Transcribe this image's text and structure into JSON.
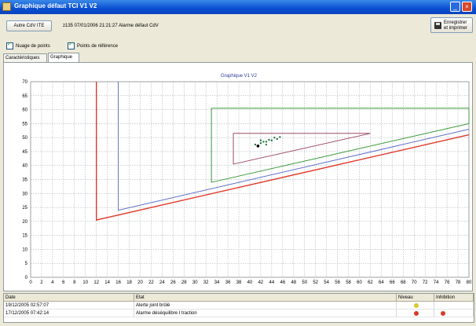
{
  "window": {
    "title": "Graphique défaut TCI V1 V2"
  },
  "toolbar": {
    "autre_cdv_label": "Autre CdV ITE",
    "alarm_text": "z135 07/01/2006 21:21:27 Alarme défaut CdV",
    "save_label_line1": "Enregistrer",
    "save_label_line2": "et imprimer"
  },
  "options": [
    {
      "label": "Nuage de points",
      "checked": true
    },
    {
      "label": "Points de référence",
      "checked": true
    }
  ],
  "tabs": [
    {
      "label": "Caractéristiques",
      "active": false
    },
    {
      "label": "Graphique",
      "active": true
    }
  ],
  "chart_data": {
    "type": "line",
    "title": "Graphique V1 V2",
    "xlim": [
      0,
      80
    ],
    "ylim": [
      0,
      70
    ],
    "xticks": [
      0,
      2,
      4,
      6,
      8,
      10,
      12,
      14,
      16,
      18,
      20,
      22,
      24,
      26,
      28,
      30,
      32,
      34,
      36,
      38,
      40,
      42,
      44,
      46,
      48,
      50,
      52,
      54,
      56,
      58,
      60,
      62,
      64,
      66,
      68,
      70,
      72,
      74,
      76,
      78,
      80
    ],
    "yticks": [
      0,
      5,
      10,
      15,
      20,
      25,
      30,
      35,
      40,
      45,
      50,
      55,
      60,
      65,
      70
    ],
    "grid": true,
    "series": [
      {
        "color": "#e03a2a",
        "points": [
          [
            12,
            70
          ],
          [
            12,
            20.5
          ],
          [
            80,
            51
          ]
        ]
      },
      {
        "color": "#6070c8",
        "points": [
          [
            16,
            70
          ],
          [
            16,
            24
          ],
          [
            80,
            53
          ]
        ]
      },
      {
        "color": "#3a9a3a",
        "points": [
          [
            33,
            60.5
          ],
          [
            80,
            60.5
          ],
          [
            80,
            55
          ],
          [
            33,
            34
          ],
          [
            33,
            60.5
          ]
        ]
      },
      {
        "color": "#a04a6a",
        "points": [
          [
            37,
            51.5
          ],
          [
            62,
            51.5
          ],
          [
            37,
            40.5
          ],
          [
            37,
            51.5
          ]
        ]
      }
    ],
    "marks": {
      "cluster_color": "#1a7a3a",
      "cluster": [
        [
          41,
          47.5
        ],
        [
          42,
          48
        ],
        [
          43,
          48.5
        ],
        [
          44,
          49
        ],
        [
          45,
          49.5
        ],
        [
          41.5,
          47
        ],
        [
          42.5,
          48.5
        ],
        [
          43.5,
          49.2
        ],
        [
          44.5,
          50
        ],
        [
          45.5,
          50.2
        ],
        [
          42,
          49
        ],
        [
          43,
          47.5
        ]
      ],
      "reference_point": [
        41.5,
        47
      ],
      "reference_color": "#000000"
    }
  },
  "events": {
    "headers": [
      "Date",
      "Etat",
      "Niveau",
      "Inhibition"
    ],
    "rows": [
      {
        "date": "19/12/2005 02:57:07",
        "etat": "Alerte joint brûlé",
        "niveau_color": "#d8c830",
        "inhibition_color": ""
      },
      {
        "date": "17/12/2005 07:42:14",
        "etat": "Alarme déséquilibre I traction",
        "niveau_color": "#d83a2a",
        "inhibition_color": "#d83a2a"
      }
    ]
  }
}
